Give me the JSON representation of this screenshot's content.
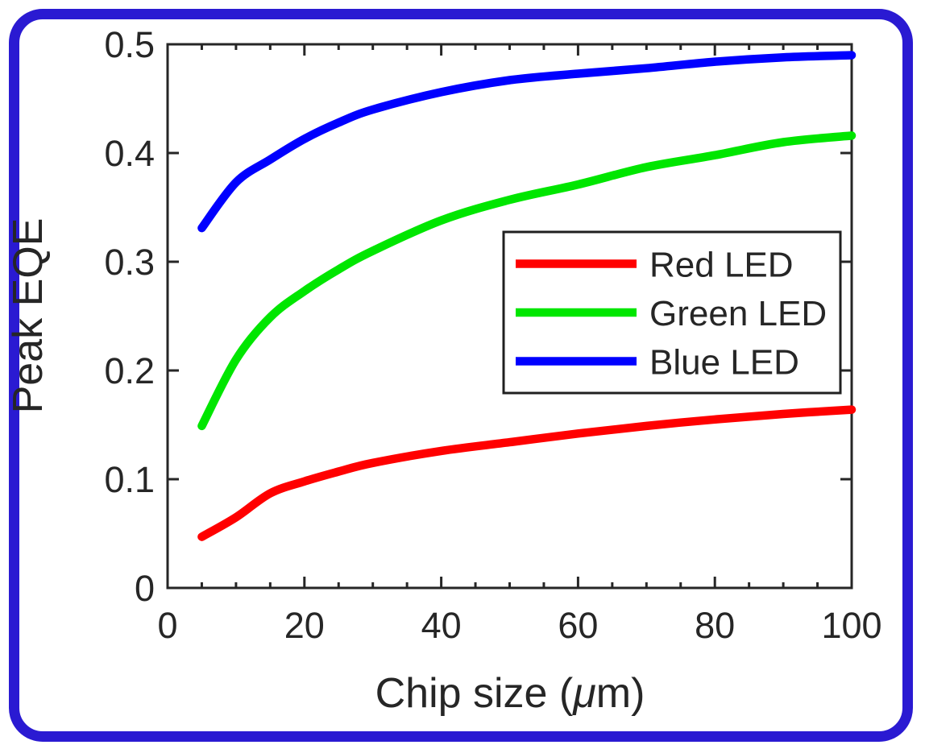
{
  "figure": {
    "background_color": "#ffffff",
    "frame_border_color": "#2a1ad2",
    "axis_color": "#262626",
    "text_color": "#262626"
  },
  "chart_data": {
    "type": "line",
    "title": "",
    "xlabel": "Chip size (μm)",
    "xlabel_parts": {
      "pre": "Chip size (",
      "mu": "μ",
      "post": "m)"
    },
    "ylabel": "Peak EQE",
    "xlim": [
      0,
      100
    ],
    "ylim": [
      0,
      0.5
    ],
    "x_ticks": [
      0,
      20,
      40,
      60,
      80,
      100
    ],
    "x_tick_labels": [
      "0",
      "20",
      "40",
      "60",
      "80",
      "100"
    ],
    "x_minor_step": 5,
    "y_ticks": [
      0,
      0.1,
      0.2,
      0.3,
      0.4,
      0.5
    ],
    "y_tick_labels": [
      "0",
      "0.1",
      "0.2",
      "0.3",
      "0.4",
      "0.5"
    ],
    "grid": false,
    "box": true,
    "legend_position": "middle-right",
    "x": [
      5,
      10,
      15,
      20,
      25,
      30,
      40,
      50,
      60,
      70,
      80,
      90,
      100
    ],
    "series": [
      {
        "name": "Red LED",
        "color": "#ff0000",
        "values": [
          0.047,
          0.065,
          0.087,
          0.098,
          0.107,
          0.115,
          0.126,
          0.134,
          0.142,
          0.149,
          0.155,
          0.16,
          0.164
        ]
      },
      {
        "name": "Green LED",
        "color": "#00e600",
        "values": [
          0.149,
          0.21,
          0.249,
          0.273,
          0.293,
          0.31,
          0.338,
          0.357,
          0.371,
          0.387,
          0.398,
          0.41,
          0.416
        ]
      },
      {
        "name": "Blue LED",
        "color": "#0000ff",
        "values": [
          0.331,
          0.373,
          0.394,
          0.413,
          0.428,
          0.44,
          0.456,
          0.467,
          0.473,
          0.478,
          0.484,
          0.488,
          0.49
        ]
      }
    ]
  }
}
